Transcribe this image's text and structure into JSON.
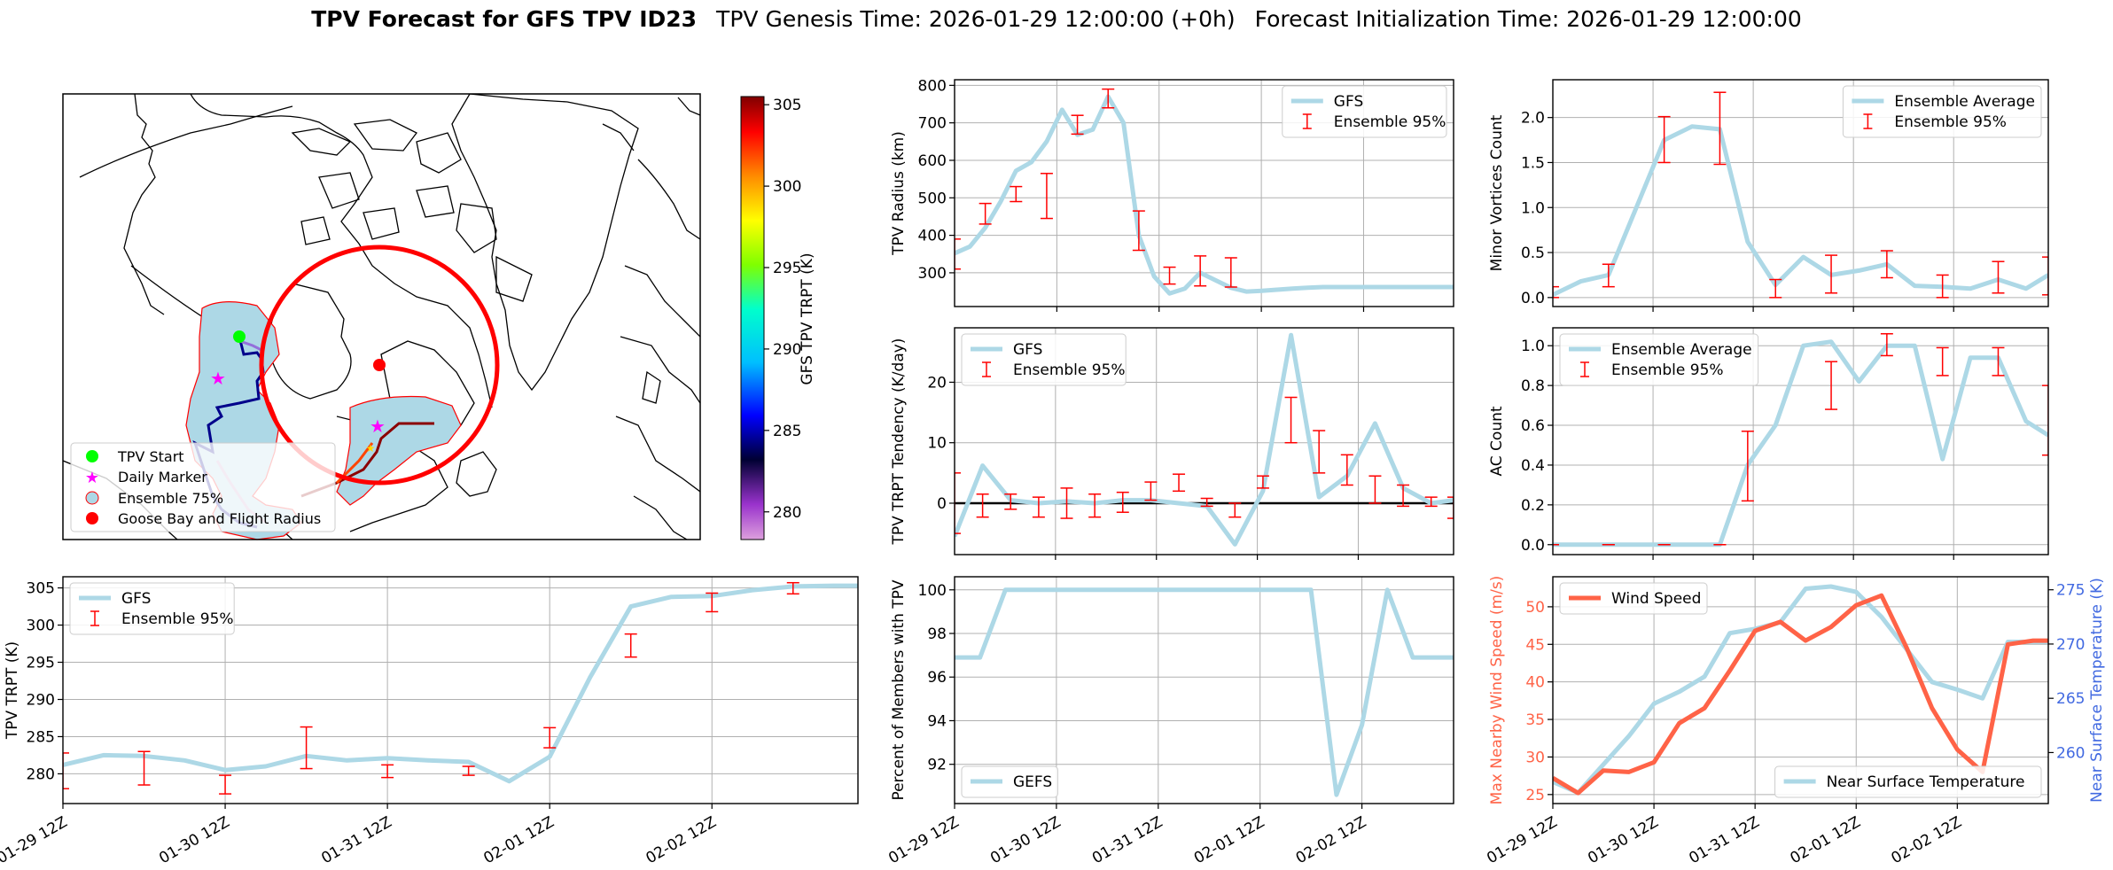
{
  "header": {
    "title_bold": "TPV Forecast for GFS TPV ID23",
    "genesis": "TPV Genesis Time: 2026-01-29 12:00:00 (+0h)",
    "init": "Forecast Initialization Time: 2026-01-29 12:00:00"
  },
  "colors": {
    "light_blue": "#add8e6",
    "red": "#ff0000",
    "tomato": "#ff6347",
    "royal_blue": "#4169e1",
    "green": "#00ff00",
    "magenta": "#ff00ff",
    "grid": "#b0b0b0"
  },
  "chart_data": [
    {
      "id": "map",
      "type": "map",
      "legend": [
        {
          "label": "TPV Start",
          "marker": "green-circle"
        },
        {
          "label": "Daily Marker",
          "marker": "magenta-star"
        },
        {
          "label": "Ensemble 75%",
          "marker": "lightblue-circle-red-edge"
        },
        {
          "label": "Goose Bay and Flight Radius",
          "marker": "red-circle"
        }
      ],
      "colorbar": {
        "label": "GFS TPV TRPT (K)",
        "ticks": [
          280,
          285,
          290,
          295,
          300,
          305
        ],
        "range": [
          278.3,
          305.5
        ]
      }
    },
    {
      "id": "radius",
      "type": "line",
      "ylabel": "TPV Radius (km)",
      "ylim": [
        210,
        815
      ],
      "yticks": [
        300,
        400,
        500,
        600,
        700,
        800
      ],
      "xlim": [
        0,
        16.25
      ],
      "xticklabels": [],
      "legend_pos": "top-right",
      "series": [
        {
          "name": "GFS",
          "x": [
            0,
            0.5,
            1,
            1.5,
            2,
            2.5,
            3,
            3.5,
            4,
            4.5,
            5,
            5.5,
            6,
            6.5,
            7,
            7.5,
            8,
            8.5,
            9,
            9.5,
            10,
            10.5,
            11,
            11.5,
            12,
            12.5,
            13,
            13.5,
            14,
            14.5,
            15,
            15.5,
            16,
            16.25
          ],
          "y": [
            352,
            370,
            420,
            490,
            572,
            595,
            650,
            735,
            668,
            682,
            770,
            700,
            400,
            290,
            245,
            258,
            300,
            280,
            260,
            250,
            252,
            255,
            258,
            260,
            262,
            262,
            262,
            262,
            262,
            262,
            262,
            262,
            262,
            262
          ]
        }
      ],
      "errorbars": {
        "name": "Ensemble 95%",
        "x": [
          0,
          1,
          2,
          3,
          4,
          5,
          6,
          7,
          8,
          9
        ],
        "low": [
          310,
          430,
          490,
          445,
          670,
          740,
          360,
          270,
          265,
          262
        ],
        "high": [
          390,
          485,
          530,
          565,
          720,
          790,
          465,
          315,
          345,
          340
        ]
      }
    },
    {
      "id": "minor",
      "type": "line",
      "ylabel": "Minor Vortices Count",
      "ylim": [
        -0.1,
        2.42
      ],
      "yticks": [
        "0.0",
        "0.5",
        "1.0",
        "1.5",
        "2.0"
      ],
      "xlim": [
        0,
        8.9
      ],
      "xticklabels": [],
      "legend_pos": "top-right",
      "series": [
        {
          "name": "Ensemble Average",
          "x": [
            0,
            0.5,
            1,
            1.5,
            2,
            2.5,
            3,
            3.5,
            4,
            4.5,
            5,
            5.5,
            6,
            6.5,
            7,
            7.5,
            8,
            8.5,
            8.9
          ],
          "y": [
            0.03,
            0.18,
            0.25,
            1.0,
            1.75,
            1.9,
            1.87,
            0.62,
            0.14,
            0.45,
            0.25,
            0.3,
            0.37,
            0.13,
            0.12,
            0.1,
            0.2,
            0.1,
            0.25
          ]
        }
      ],
      "errorbars": {
        "name": "Ensemble 95%",
        "x": [
          0,
          1,
          2,
          3,
          4,
          5,
          6,
          7,
          8,
          8.9
        ],
        "low": [
          0,
          0.12,
          1.5,
          1.48,
          0,
          0.05,
          0.22,
          0,
          0.05,
          0.03
        ],
        "high": [
          0.12,
          0.37,
          2.01,
          2.28,
          0.2,
          0.47,
          0.52,
          0.25,
          0.4,
          0.45
        ]
      }
    },
    {
      "id": "tendency",
      "type": "line",
      "ylabel": "TPV TRPT Tendency (K/day)",
      "ylim": [
        -8.5,
        29
      ],
      "yticks": [
        0,
        10,
        20
      ],
      "xlim": [
        0,
        8.9
      ],
      "xticklabels": [],
      "legend_pos": "top-left",
      "zero_line": true,
      "series": [
        {
          "name": "GFS",
          "x": [
            0,
            0.5,
            1,
            1.5,
            2,
            2.5,
            3,
            3.5,
            4,
            4.5,
            5,
            5.5,
            6,
            6.5,
            7,
            7.5,
            8,
            8.5,
            8.9
          ],
          "y": [
            -5.5,
            6.2,
            0.5,
            0.0,
            0.3,
            0.0,
            0.5,
            0.5,
            0.0,
            -0.5,
            -6.8,
            2.0,
            27.8,
            1.0,
            4.5,
            13.2,
            2.5,
            0,
            0.5
          ]
        }
      ],
      "errorbars": {
        "name": "Ensemble 95%",
        "x": [
          0,
          0.5,
          1,
          1.5,
          2,
          2.5,
          3,
          3.5,
          4,
          4.5,
          5,
          5.5,
          6,
          6.5,
          7,
          7.5,
          8,
          8.5,
          8.9
        ],
        "low": [
          -5,
          -2.3,
          -1,
          -2.3,
          -2.5,
          -2.3,
          -1.5,
          0.5,
          2,
          -0.5,
          -2.3,
          2.5,
          10,
          5,
          3,
          0,
          -0.5,
          -0.5,
          -2.5
        ],
        "high": [
          5,
          1.5,
          1.5,
          1,
          2.5,
          1.5,
          1.8,
          3.5,
          4.8,
          0.8,
          0,
          4.5,
          17.5,
          12,
          8,
          4.5,
          3,
          1,
          1
        ]
      }
    },
    {
      "id": "ac",
      "type": "line",
      "ylabel": "AC Count",
      "ylim": [
        -0.05,
        1.09
      ],
      "yticks": [
        "0.0",
        "0.2",
        "0.4",
        "0.6",
        "0.8",
        "1.0"
      ],
      "xlim": [
        0,
        8.9
      ],
      "xticklabels": [],
      "legend_pos": "top-left",
      "series": [
        {
          "name": "Ensemble Average",
          "x": [
            0,
            0.5,
            1,
            1.5,
            2,
            2.5,
            3,
            3.5,
            4,
            4.5,
            5,
            5.5,
            6,
            6.5,
            7,
            7.5,
            8,
            8.5,
            8.9
          ],
          "y": [
            0,
            0,
            0,
            0,
            0,
            0,
            0,
            0.4,
            0.6,
            1.0,
            1.02,
            0.82,
            1.0,
            1.0,
            0.43,
            0.94,
            0.94,
            0.62,
            0.55
          ]
        }
      ],
      "errorbars": {
        "name": "Ensemble 95%",
        "x": [
          0,
          1,
          2,
          3,
          3.5,
          5,
          6,
          7,
          8,
          8.9
        ],
        "low": [
          0,
          0,
          0,
          0,
          0.22,
          0.68,
          0.95,
          0.85,
          0.85,
          0.45
        ],
        "high": [
          0,
          0,
          0,
          0,
          0.57,
          0.92,
          1.06,
          0.99,
          0.99,
          0.8
        ]
      }
    },
    {
      "id": "trpt",
      "type": "line",
      "ylabel": "TPV TRPT (K)",
      "ylim": [
        276,
        306.5
      ],
      "yticks": [
        280,
        285,
        290,
        295,
        300,
        305
      ],
      "xlim": [
        0,
        4.9
      ],
      "xticklabels": [
        "01-29 12Z",
        "01-30 12Z",
        "01-31 12Z",
        "02-01 12Z",
        "02-02 12Z"
      ],
      "xticks": [
        0,
        1,
        2,
        3,
        4
      ],
      "legend_pos": "top-left",
      "series": [
        {
          "name": "GFS",
          "x": [
            0,
            0.25,
            0.5,
            0.75,
            1,
            1.25,
            1.5,
            1.75,
            2,
            2.25,
            2.5,
            2.75,
            3,
            3.25,
            3.5,
            3.75,
            4,
            4.25,
            4.5,
            4.75,
            4.9
          ],
          "y": [
            281.2,
            282.5,
            282.4,
            281.8,
            280.5,
            281.0,
            282.4,
            281.8,
            282.1,
            281.8,
            281.6,
            279.0,
            282.3,
            293.0,
            302.5,
            303.8,
            303.9,
            304.7,
            305.2,
            305.3,
            305.3
          ]
        }
      ],
      "errorbars": {
        "name": "Ensemble 95%",
        "x": [
          0,
          0.5,
          1,
          1.5,
          2,
          2.5,
          3,
          3.5,
          4,
          4.5
        ],
        "low": [
          278,
          278.5,
          277.3,
          280.7,
          279.5,
          279.8,
          283.5,
          295.7,
          301.8,
          304.2
        ],
        "high": [
          282.8,
          283.0,
          279.8,
          286.3,
          281.2,
          281.0,
          286.2,
          298.8,
          304.3,
          305.7
        ]
      }
    },
    {
      "id": "percent",
      "type": "line",
      "ylabel": "Percent of Members with TPV",
      "ylim": [
        90.2,
        100.6
      ],
      "yticks": [
        92,
        94,
        96,
        98,
        100
      ],
      "xlim": [
        0,
        4.9
      ],
      "xticklabels": [
        "01-29 12Z",
        "01-30 12Z",
        "01-31 12Z",
        "02-01 12Z",
        "02-02 12Z"
      ],
      "xticks": [
        0,
        1,
        2,
        3,
        4
      ],
      "legend_pos": "bottom-left",
      "series": [
        {
          "name": "GEFS",
          "x": [
            0,
            0.25,
            0.5,
            0.75,
            1,
            1.25,
            1.5,
            1.75,
            2,
            2.25,
            2.5,
            2.75,
            3,
            3.25,
            3.5,
            3.75,
            4,
            4.25,
            4.5,
            4.75,
            4.9
          ],
          "y": [
            96.9,
            96.9,
            100,
            100,
            100,
            100,
            100,
            100,
            100,
            100,
            100,
            100,
            100,
            100,
            100,
            90.6,
            93.8,
            100,
            96.9,
            96.9,
            96.9
          ]
        }
      ]
    },
    {
      "id": "wind",
      "type": "line",
      "ylabel": "Max Nearby Wind Speed (m/s)",
      "ylabel_right": "Near Surface Temperature (K)",
      "ylim": [
        23.8,
        54
      ],
      "yticks": [
        25,
        30,
        35,
        40,
        45,
        50
      ],
      "ylim_right": [
        255.3,
        276.2
      ],
      "yticks_right": [
        260,
        265,
        270,
        275
      ],
      "xlim": [
        0,
        4.9
      ],
      "xticklabels": [
        "01-29 12Z",
        "01-30 12Z",
        "01-31 12Z",
        "02-01 12Z",
        "02-02 12Z"
      ],
      "xticks": [
        0,
        1,
        2,
        3,
        4
      ],
      "series": [
        {
          "name": "Wind Speed",
          "axis": "left",
          "x": [
            0,
            0.25,
            0.5,
            0.75,
            1,
            1.25,
            1.5,
            1.75,
            2,
            2.25,
            2.5,
            2.75,
            3,
            3.25,
            3.5,
            3.75,
            4,
            4.25,
            4.5,
            4.75,
            4.9
          ],
          "y": [
            27.2,
            25.2,
            28.2,
            28.0,
            29.3,
            34.5,
            36.5,
            41.5,
            46.8,
            48.0,
            45.5,
            47.3,
            50.2,
            51.5,
            44.5,
            36.5,
            31.0,
            28.0,
            45.0,
            45.5,
            45.5
          ]
        },
        {
          "name": "Near Surface Temperature",
          "axis": "right",
          "x": [
            0,
            0.25,
            0.5,
            0.75,
            1,
            1.25,
            1.5,
            1.75,
            2,
            2.25,
            2.5,
            2.75,
            3,
            3.25,
            3.5,
            3.75,
            4,
            4.25,
            4.5,
            4.75,
            4.9
          ],
          "y": [
            257.3,
            256.3,
            258.9,
            261.5,
            264.5,
            265.6,
            267.0,
            271.0,
            271.4,
            272.0,
            275.1,
            275.3,
            274.8,
            272.5,
            269.5,
            266.5,
            265.8,
            265.0,
            270.2,
            270.2,
            270.2
          ]
        }
      ]
    }
  ]
}
